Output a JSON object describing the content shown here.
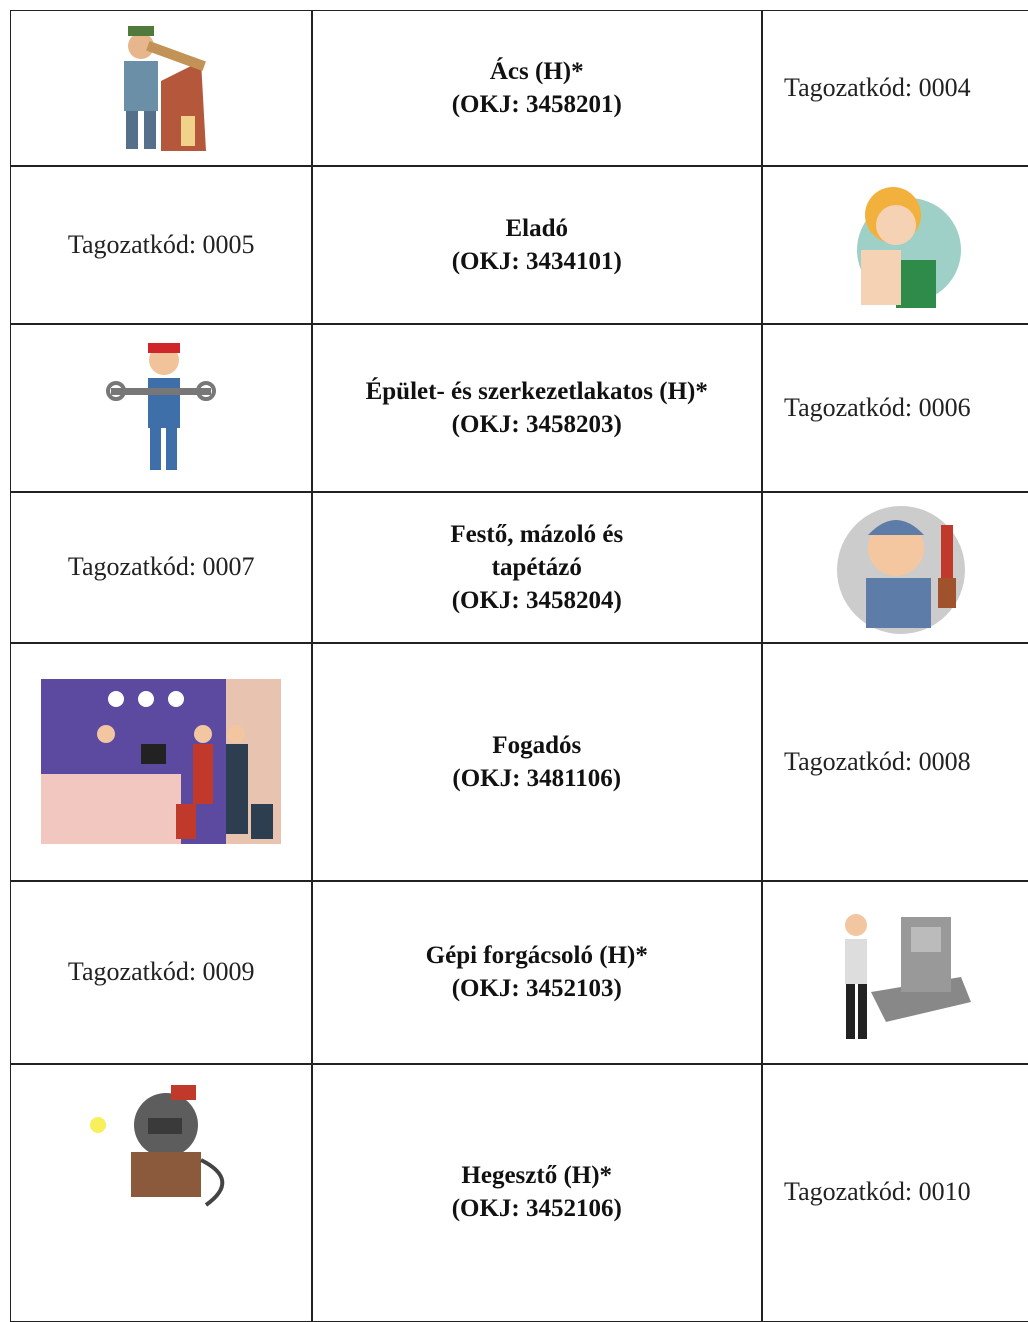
{
  "table": {
    "rows": [
      {
        "title": "Ács (H)*",
        "okj": "(OKJ: 3458201)",
        "code": "Tagozatkód: 0004"
      },
      {
        "title": "Eladó",
        "okj": "(OKJ: 3434101)",
        "code": "Tagozatkód: 0005"
      },
      {
        "title": "Épület- és szerkezetlakatos (H)*",
        "okj": "(OKJ: 3458203)",
        "code": "Tagozatkód: 0006"
      },
      {
        "title": "Festő, mázoló és tapétázó",
        "okj": "(OKJ: 3458204)",
        "code": "Tagozatkód: 0007"
      },
      {
        "title": "Fogadós",
        "okj": "(OKJ: 3481106)",
        "code": "Tagozatkód: 0008"
      },
      {
        "title": "Gépi forgácsoló (H)*",
        "okj": "(OKJ: 3452103)",
        "code": "Tagozatkód: 0009"
      },
      {
        "title": "Hegesztő (H)*",
        "okj": "(OKJ: 3452106)",
        "code": "Tagozatkód: 0010"
      }
    ]
  }
}
